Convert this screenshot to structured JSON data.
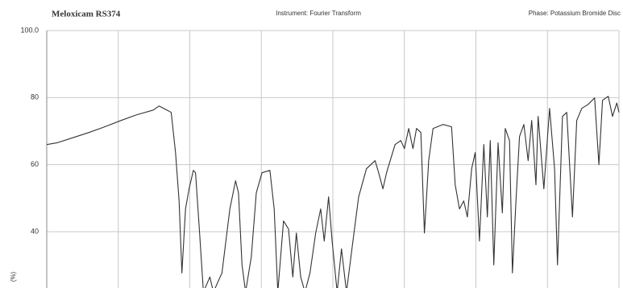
{
  "chart_data": {
    "type": "line",
    "title": "Meloxicam RS374",
    "subtitle": "Instrument:  Fourier Transform",
    "annotation": "Phase:  Potassium Bromide Disc",
    "ylabel": "(%)",
    "ylim": [
      23.2,
      100
    ],
    "yticks": [
      {
        "value": 100,
        "label": "100.0"
      },
      80,
      60,
      40
    ],
    "xlim": [
      0,
      8
    ],
    "xticks": [
      0,
      1,
      2,
      3,
      4,
      5,
      6,
      7,
      8
    ],
    "grid": true,
    "series": [
      {
        "color": "#333333",
        "x": [
          0,
          0.14,
          0.36,
          0.59,
          0.81,
          1.04,
          1.26,
          1.49,
          1.57,
          1.66,
          1.74,
          1.8,
          1.85,
          1.89,
          1.94,
          1.99,
          2.05,
          2.08,
          2.13,
          2.19,
          2.28,
          2.33,
          2.45,
          2.56,
          2.64,
          2.68,
          2.73,
          2.78,
          2.86,
          2.93,
          3.01,
          3.12,
          3.18,
          3.23,
          3.31,
          3.38,
          3.44,
          3.49,
          3.55,
          3.61,
          3.68,
          3.76,
          3.83,
          3.88,
          3.94,
          3.99,
          4.06,
          4.12,
          4.19,
          4.28,
          4.36,
          4.47,
          4.59,
          4.64,
          4.7,
          4.75,
          4.87,
          4.95,
          5.0,
          5.06,
          5.12,
          5.17,
          5.23,
          5.28,
          5.34,
          5.4,
          5.54,
          5.66,
          5.71,
          5.77,
          5.83,
          5.88,
          5.94,
          5.99,
          6.05,
          6.11,
          6.16,
          6.2,
          6.25,
          6.31,
          6.37,
          6.41,
          6.47,
          6.51,
          6.56,
          6.61,
          6.67,
          6.73,
          6.78,
          6.84,
          6.87,
          6.95,
          7.03,
          7.1,
          7.14,
          7.21,
          7.27,
          7.35,
          7.41,
          7.48,
          7.57,
          7.66,
          7.72,
          7.77,
          7.85,
          7.91,
          7.97,
          8.0
        ],
        "values": [
          66.0,
          66.5,
          68.0,
          69.6,
          71.3,
          73.2,
          74.9,
          76.3,
          77.5,
          76.5,
          75.6,
          63.6,
          49.2,
          27.7,
          46.8,
          52.8,
          58.3,
          57.6,
          42.0,
          22,
          26.5,
          22,
          27.7,
          46.8,
          55.2,
          51.6,
          30.1,
          22,
          32.5,
          51.6,
          57.6,
          58.3,
          46.8,
          22,
          43.2,
          40.8,
          26.5,
          39.6,
          26.5,
          22,
          27.7,
          39.6,
          46.8,
          37.2,
          50.4,
          37.2,
          22,
          34.9,
          22,
          37.2,
          50.4,
          58.8,
          61.2,
          57.6,
          52.8,
          57.6,
          66.0,
          67.2,
          64.8,
          70.8,
          64.8,
          70.8,
          69.6,
          39.6,
          61.2,
          70.8,
          72.0,
          71.3,
          54.0,
          46.8,
          49.2,
          44.4,
          58.8,
          63.6,
          37.2,
          66.0,
          44.4,
          67.2,
          30.1,
          66.5,
          45.6,
          70.8,
          67.2,
          27.7,
          49.2,
          68.4,
          72.0,
          61.2,
          73.2,
          54.0,
          74.4,
          52.8,
          76.8,
          58.8,
          30.1,
          74.4,
          75.6,
          44.4,
          73.2,
          76.8,
          78.0,
          79.9,
          60.0,
          79.2,
          80.4,
          74.4,
          78.4,
          75.6
        ]
      }
    ]
  }
}
